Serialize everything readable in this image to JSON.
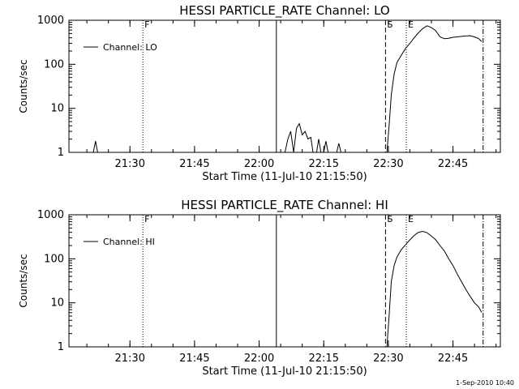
{
  "footer_timestamp": "1-Sep-2010 10:40",
  "chart_data": [
    {
      "type": "line",
      "title": "HESSI PARTICLE_RATE Channel: LO",
      "xlabel": "Start Time (11-Jul-10 21:15:50)",
      "ylabel": "Counts/sec",
      "yscale": "log",
      "ylim": [
        1,
        1000
      ],
      "xlim": [
        "21:15:50",
        "22:56:00"
      ],
      "x_ticks": [
        "21:30",
        "21:45",
        "22:00",
        "22:15",
        "22:30",
        "22:45"
      ],
      "y_ticks": [
        "1",
        "10",
        "100",
        "1000"
      ],
      "legend": {
        "placement": "top-left",
        "entries": [
          "Channel: LO"
        ]
      },
      "markers": [
        {
          "label": "F",
          "x": "21:33:00",
          "style": "dotted"
        },
        {
          "label": "",
          "x": "22:04:00",
          "style": "solid"
        },
        {
          "label": "S",
          "x": "22:29:20",
          "style": "dashed"
        },
        {
          "label": "E",
          "x": "22:34:10",
          "style": "dotted"
        },
        {
          "label": "",
          "x": "22:52:00",
          "style": "dash-dot"
        }
      ],
      "series": [
        {
          "name": "Channel: LO",
          "segments": [
            [
              [
                "21:21:30",
                1.0
              ],
              [
                "21:22:00",
                1.8
              ],
              [
                "21:22:30",
                1.0
              ]
            ],
            [
              [
                "22:06:00",
                1.0
              ],
              [
                "22:06:40",
                2.0
              ],
              [
                "22:07:20",
                3.0
              ],
              [
                "22:08:00",
                1.0
              ],
              [
                "22:08:40",
                3.5
              ],
              [
                "22:09:20",
                4.5
              ],
              [
                "22:10:00",
                2.5
              ],
              [
                "22:10:40",
                3.0
              ],
              [
                "22:11:20",
                2.0
              ],
              [
                "22:12:00",
                2.2
              ],
              [
                "22:12:30",
                1.0
              ]
            ],
            [
              [
                "22:13:20",
                1.0
              ],
              [
                "22:13:50",
                2.0
              ],
              [
                "22:14:20",
                1.0
              ]
            ],
            [
              [
                "22:15:00",
                1.0
              ],
              [
                "22:15:30",
                1.8
              ],
              [
                "22:16:00",
                1.0
              ]
            ],
            [
              [
                "22:18:00",
                1.0
              ],
              [
                "22:18:30",
                1.6
              ],
              [
                "22:19:00",
                1.0
              ]
            ],
            [
              [
                "22:29:40",
                1.0
              ],
              [
                "22:30:10",
                4.0
              ],
              [
                "22:30:40",
                20
              ],
              [
                "22:31:20",
                60
              ],
              [
                "22:32:00",
                110
              ],
              [
                "22:33:00",
                160
              ],
              [
                "22:34:00",
                230
              ],
              [
                "22:35:00",
                300
              ],
              [
                "22:36:00",
                400
              ],
              [
                "22:37:00",
                520
              ],
              [
                "22:38:00",
                650
              ],
              [
                "22:39:00",
                750
              ],
              [
                "22:40:00",
                680
              ],
              [
                "22:41:00",
                580
              ],
              [
                "22:42:00",
                420
              ],
              [
                "22:43:00",
                380
              ],
              [
                "22:44:00",
                390
              ],
              [
                "22:45:00",
                410
              ],
              [
                "22:46:00",
                420
              ],
              [
                "22:47:00",
                430
              ],
              [
                "22:48:00",
                440
              ],
              [
                "22:49:00",
                445
              ],
              [
                "22:50:00",
                420
              ],
              [
                "22:51:00",
                380
              ],
              [
                "22:51:40",
                330
              ]
            ]
          ]
        }
      ]
    },
    {
      "type": "line",
      "title": "HESSI PARTICLE_RATE Channel: HI",
      "xlabel": "Start Time (11-Jul-10 21:15:50)",
      "ylabel": "Counts/sec",
      "yscale": "log",
      "ylim": [
        1,
        1000
      ],
      "xlim": [
        "21:15:50",
        "22:56:00"
      ],
      "x_ticks": [
        "21:30",
        "21:45",
        "22:00",
        "22:15",
        "22:30",
        "22:45"
      ],
      "y_ticks": [
        "1",
        "10",
        "100",
        "1000"
      ],
      "legend": {
        "placement": "top-left",
        "entries": [
          "Channel: HI"
        ]
      },
      "markers": [
        {
          "label": "F",
          "x": "21:33:00",
          "style": "dotted"
        },
        {
          "label": "",
          "x": "22:04:00",
          "style": "solid"
        },
        {
          "label": "S",
          "x": "22:29:20",
          "style": "dashed"
        },
        {
          "label": "E",
          "x": "22:34:10",
          "style": "dotted"
        },
        {
          "label": "",
          "x": "22:52:00",
          "style": "dash-dot"
        }
      ],
      "series": [
        {
          "name": "Channel: HI",
          "segments": [
            [
              [
                "22:29:40",
                1.0
              ],
              [
                "22:30:10",
                5.0
              ],
              [
                "22:30:40",
                30
              ],
              [
                "22:31:20",
                70
              ],
              [
                "22:32:00",
                110
              ],
              [
                "22:33:00",
                160
              ],
              [
                "22:34:00",
                210
              ],
              [
                "22:35:00",
                270
              ],
              [
                "22:36:00",
                340
              ],
              [
                "22:37:00",
                400
              ],
              [
                "22:38:00",
                420
              ],
              [
                "22:39:00",
                390
              ],
              [
                "22:40:00",
                330
              ],
              [
                "22:41:00",
                270
              ],
              [
                "22:42:00",
                200
              ],
              [
                "22:43:00",
                150
              ],
              [
                "22:44:00",
                100
              ],
              [
                "22:45:00",
                70
              ],
              [
                "22:46:00",
                45
              ],
              [
                "22:47:00",
                30
              ],
              [
                "22:48:00",
                20
              ],
              [
                "22:49:00",
                14
              ],
              [
                "22:50:00",
                10
              ],
              [
                "22:51:00",
                8
              ],
              [
                "22:51:40",
                6
              ]
            ]
          ]
        }
      ]
    }
  ]
}
